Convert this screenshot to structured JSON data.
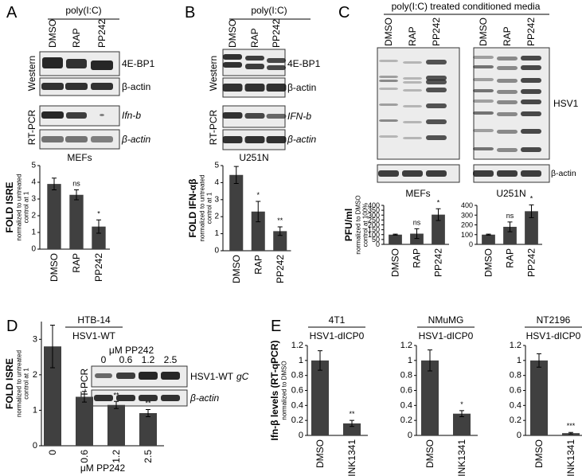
{
  "panels": {
    "A": {
      "letter": "A",
      "treatment": "poly(I:C)",
      "lanes": [
        "DMSO",
        "RAP",
        "PP242"
      ],
      "methods": [
        "Western",
        "RT-PCR"
      ],
      "blots": [
        "4E-BP1",
        "β-actin",
        "Ifn-b",
        "β-actin"
      ],
      "cells": "MEFs"
    },
    "B": {
      "letter": "B",
      "treatment": "poly(I:C)",
      "lanes": [
        "DMSO",
        "RAP",
        "PP242"
      ],
      "methods": [
        "Western",
        "RT-PCR"
      ],
      "blots": [
        "4E-BP1",
        "β-actin",
        "IFN-b",
        "β-actin"
      ],
      "cells": "U251N"
    },
    "C": {
      "letter": "C",
      "treatment": "poly(I:C) treated conditioned media",
      "lanes_mefs": [
        "DMSO",
        "RAP",
        "PP242"
      ],
      "lanes_u251n": [
        "DMSO",
        "RAP",
        "PP242"
      ],
      "blots": [
        "HSV1",
        "β-actin"
      ],
      "cells": [
        "MEFs",
        "U251N"
      ]
    },
    "D": {
      "letter": "D",
      "dose": "μM PP242",
      "lanes": [
        "0",
        "0.6",
        "1.2",
        "2.5"
      ],
      "method": "RT-PCR",
      "blot_virus": "HSV1-WT",
      "blot_gene": "gC",
      "blot_control": "β-actin"
    },
    "E": {
      "letter": "E"
    }
  },
  "chart_data": [
    {
      "type": "bar",
      "ylabel": "FOLD ISRE",
      "ylabel_sub": [
        "normalized to untreated",
        "control at 1"
      ],
      "categories": [
        "DMSO",
        "RAP",
        "PP242"
      ],
      "values": [
        3.9,
        3.25,
        1.35
      ],
      "errors": [
        0.35,
        0.3,
        0.4
      ],
      "annotations": [
        null,
        "ns",
        "*"
      ],
      "ylim": [
        0,
        5
      ],
      "yticks": [
        0,
        1,
        2,
        3,
        4,
        5
      ],
      "color": "#404040"
    },
    {
      "type": "bar",
      "ylabel": "FOLD IFN-αβ",
      "ylabel_sub": [
        "normalized to untreated",
        "control at 1"
      ],
      "categories": [
        "DMSO",
        "RAP",
        "PP242"
      ],
      "values": [
        4.45,
        2.3,
        1.15
      ],
      "errors": [
        0.5,
        0.6,
        0.25
      ],
      "annotations": [
        null,
        "*",
        "**"
      ],
      "ylim": [
        0,
        5
      ],
      "yticks": [
        0,
        1,
        2,
        3,
        4,
        5
      ],
      "color": "#404040"
    },
    {
      "type": "bar",
      "ylabel": "PFU/ml",
      "ylabel_sub": [
        "normalized to DMSO",
        "control at 100%"
      ],
      "categories": [
        "DMSO",
        "RAP",
        "PP242"
      ],
      "values": [
        100,
        110,
        305
      ],
      "errors": [
        5,
        50,
        60
      ],
      "annotations": [
        null,
        "ns",
        "*"
      ],
      "ylim": [
        0,
        400
      ],
      "yticks": [
        0,
        50,
        100,
        150,
        200,
        250,
        300,
        350,
        400
      ],
      "color": "#404040"
    },
    {
      "type": "bar",
      "categories": [
        "DMSO",
        "RAP",
        "PP242"
      ],
      "values": [
        100,
        180,
        340
      ],
      "errors": [
        5,
        50,
        65
      ],
      "annotations": [
        null,
        "ns",
        "*"
      ],
      "ylim": [
        0,
        400
      ],
      "yticks": [
        0,
        100,
        200,
        300,
        400
      ],
      "color": "#404040"
    },
    {
      "type": "bar",
      "title": "HTB-14",
      "subtitle": "HSV1-WT",
      "ylabel": "FOLD ISRE",
      "ylabel_sub": [
        "normalized to untreated",
        "control at 1"
      ],
      "xlabel": "μM PP242",
      "categories": [
        "0",
        "0.6",
        "1.2",
        "2.5"
      ],
      "values": [
        2.8,
        1.38,
        1.15,
        0.92
      ],
      "errors": [
        0.6,
        0.15,
        0.1,
        0.1
      ],
      "annotations": [
        null,
        "*",
        "**",
        "**"
      ],
      "ylim": [
        0,
        3.5
      ],
      "yticks": [
        0,
        1,
        2,
        3
      ],
      "color": "#404040"
    },
    {
      "type": "bar",
      "title": "4T1",
      "subtitle": "HSV1-dICP0",
      "ylabel": "Ifn-β levels (RT-qPCR)",
      "ylabel_sub": [
        "normalized to DMSO"
      ],
      "categories": [
        "DMSO",
        "INK1341"
      ],
      "values": [
        1,
        0.16
      ],
      "errors": [
        0.13,
        0.04
      ],
      "annotations": [
        null,
        "**"
      ],
      "ylim": [
        0,
        1.2
      ],
      "yticks": [
        0,
        0.2,
        0.4,
        0.6,
        0.8,
        1,
        1.2
      ],
      "color": "#404040"
    },
    {
      "type": "bar",
      "title": "NMuMG",
      "subtitle": "HSV1-dICP0",
      "categories": [
        "DMSO",
        "INK1341"
      ],
      "values": [
        1,
        0.29
      ],
      "errors": [
        0.14,
        0.04
      ],
      "annotations": [
        null,
        "*"
      ],
      "ylim": [
        0,
        1.2
      ],
      "yticks": [
        0,
        0.2,
        0.4,
        0.6,
        0.8,
        1,
        1.2
      ],
      "color": "#404040"
    },
    {
      "type": "bar",
      "title": "NT2196",
      "subtitle": "HSV1-dICP0",
      "categories": [
        "DMSO",
        "INK1341"
      ],
      "values": [
        1,
        0.03
      ],
      "errors": [
        0.09,
        0.01
      ],
      "annotations": [
        null,
        "***"
      ],
      "ylim": [
        0,
        1.2
      ],
      "yticks": [
        0,
        0.2,
        0.4,
        0.6,
        0.8,
        1,
        1.2
      ],
      "color": "#404040"
    }
  ]
}
